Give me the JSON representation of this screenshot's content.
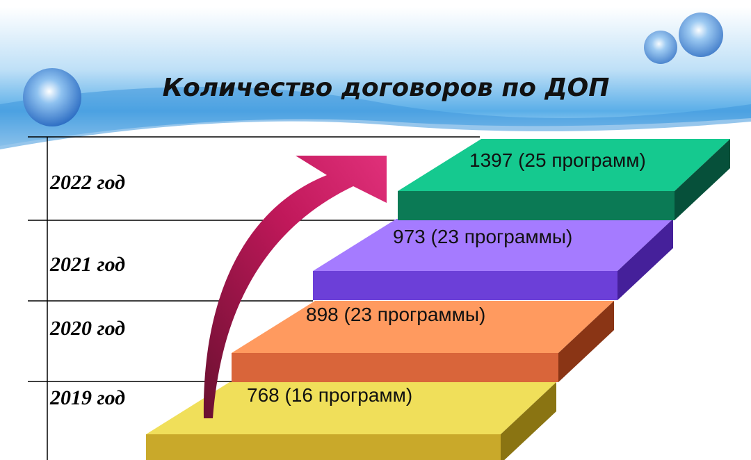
{
  "title": "Количество договоров по ДОП",
  "steps": [
    {
      "year": "2022 год",
      "label": "1397 (25 программ)"
    },
    {
      "year": "2021 год",
      "label": "973 (23 программы)"
    },
    {
      "year": "2020 год",
      "label": "898 (23 программы)"
    },
    {
      "year": "2019 год",
      "label": "768 (16 программ)"
    }
  ]
}
